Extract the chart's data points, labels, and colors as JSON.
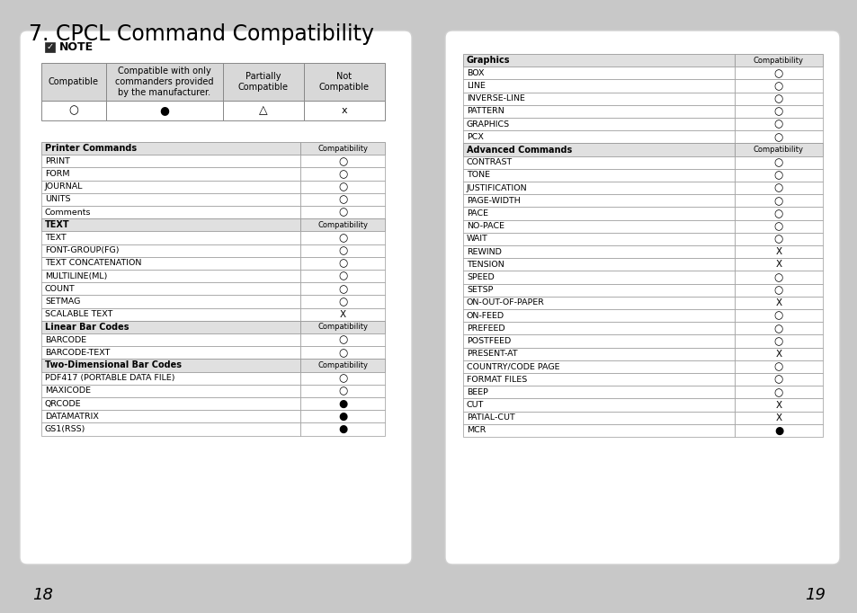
{
  "title": "7. CPCL Command Compatibility",
  "bg_color": "#c8c8c8",
  "page_bg": "#ffffff",
  "page_num_left": "18",
  "page_num_right": "19",
  "note_legend": {
    "headers": [
      "Compatible",
      "Compatible with only\ncommanders provided\nby the manufacturer.",
      "Partially\nCompatible",
      "Not\nCompatible"
    ],
    "symbols": [
      "○",
      "●",
      "△",
      "x"
    ]
  },
  "left_table": {
    "sections": [
      {
        "header": "Printer Commands",
        "header_bg": "#e0e0e0",
        "rows": [
          [
            "PRINT",
            "○"
          ],
          [
            "FORM",
            "○"
          ],
          [
            "JOURNAL",
            "○"
          ],
          [
            "UNITS",
            "○"
          ],
          [
            "Comments",
            "○"
          ]
        ]
      },
      {
        "header": "TEXT",
        "header_bg": "#e0e0e0",
        "rows": [
          [
            "TEXT",
            "○"
          ],
          [
            "FONT-GROUP(FG)",
            "○"
          ],
          [
            "TEXT CONCATENATION",
            "○"
          ],
          [
            "MULTILINE(ML)",
            "○"
          ],
          [
            "COUNT",
            "○"
          ],
          [
            "SETMAG",
            "○"
          ],
          [
            "SCALABLE TEXT",
            "X"
          ]
        ]
      },
      {
        "header": "Linear Bar Codes",
        "header_bg": "#e0e0e0",
        "rows": [
          [
            "BARCODE",
            "○"
          ],
          [
            "BARCODE-TEXT",
            "○"
          ]
        ]
      },
      {
        "header": "Two-Dimensional Bar Codes",
        "header_bg": "#e0e0e0",
        "rows": [
          [
            "PDF417 (PORTABLE DATA FILE)",
            "○"
          ],
          [
            "MAXICODE",
            "○"
          ],
          [
            "QRCODE",
            "●"
          ],
          [
            "DATAMATRIX",
            "●"
          ],
          [
            "GS1(RSS)",
            "●"
          ]
        ]
      }
    ]
  },
  "right_table": {
    "sections": [
      {
        "header": "Graphics",
        "header_bg": "#e0e0e0",
        "rows": [
          [
            "BOX",
            "○"
          ],
          [
            "LINE",
            "○"
          ],
          [
            "INVERSE-LINE",
            "○"
          ],
          [
            "PATTERN",
            "○"
          ],
          [
            "GRAPHICS",
            "○"
          ],
          [
            "PCX",
            "○"
          ]
        ]
      },
      {
        "header": "Advanced Commands",
        "header_bg": "#e0e0e0",
        "rows": [
          [
            "CONTRAST",
            "○"
          ],
          [
            "TONE",
            "○"
          ],
          [
            "JUSTIFICATION",
            "○"
          ],
          [
            "PAGE-WIDTH",
            "○"
          ],
          [
            "PACE",
            "○"
          ],
          [
            "NO-PACE",
            "○"
          ],
          [
            "WAIT",
            "○"
          ],
          [
            "REWIND",
            "X"
          ],
          [
            "TENSION",
            "X"
          ],
          [
            "SPEED",
            "○"
          ],
          [
            "SETSP",
            "○"
          ],
          [
            "ON-OUT-OF-PAPER",
            "X"
          ],
          [
            "ON-FEED",
            "○"
          ],
          [
            "PREFEED",
            "○"
          ],
          [
            "POSTFEED",
            "○"
          ],
          [
            "PRESENT-AT",
            "X"
          ],
          [
            "COUNTRY/CODE PAGE",
            "○"
          ],
          [
            "FORMAT FILES",
            "○"
          ],
          [
            "BEEP",
            "○"
          ],
          [
            "CUT",
            "X"
          ],
          [
            "PATIAL-CUT",
            "X"
          ],
          [
            "MCR",
            "●"
          ]
        ]
      }
    ]
  }
}
